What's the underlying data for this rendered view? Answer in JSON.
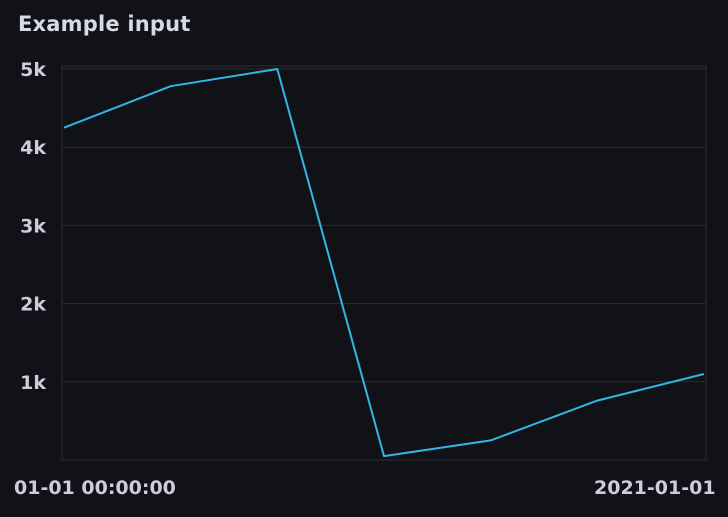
{
  "panel": {
    "title": "Example input"
  },
  "colors": {
    "background": "#111217",
    "grid": "#2c2d33",
    "series": "#33b5e5",
    "text": "#ccccdc"
  },
  "chart_data": {
    "type": "line",
    "title": "Example input",
    "xlabel": "",
    "ylabel": "",
    "x_tick_labels": [
      "01-01 00:00:00",
      "2021-01-01"
    ],
    "y_ticks": [
      {
        "value": 1000,
        "label": "1k"
      },
      {
        "value": 2000,
        "label": "2k"
      },
      {
        "value": 3000,
        "label": "3k"
      },
      {
        "value": 4000,
        "label": "4k"
      },
      {
        "value": 5000,
        "label": "5k"
      }
    ],
    "ylim": [
      0,
      5000
    ],
    "grid": true,
    "legend": "none",
    "series": [
      {
        "values": [
          4250,
          4780,
          5000,
          50,
          250,
          760,
          1100
        ]
      }
    ]
  }
}
